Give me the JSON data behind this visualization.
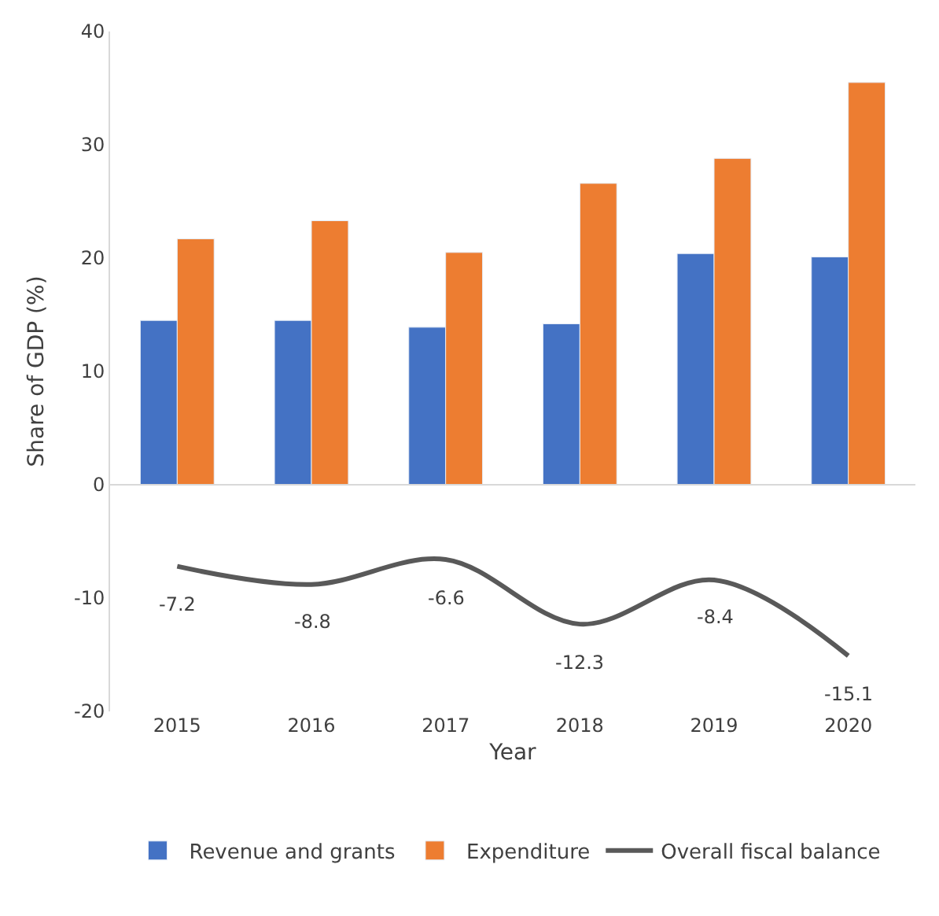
{
  "chart_data": {
    "type": "bar",
    "xlabel": "Year",
    "ylabel": "Share of GDP (%)",
    "categories": [
      "2015",
      "2016",
      "2017",
      "2018",
      "2019",
      "2020"
    ],
    "series": [
      {
        "name": "Revenue and grants",
        "color": "#4472c4",
        "values": [
          14.5,
          14.5,
          13.9,
          14.2,
          20.4,
          20.1
        ]
      },
      {
        "name": "Expenditure",
        "color": "#ed7d31",
        "values": [
          21.7,
          23.3,
          20.5,
          26.6,
          28.8,
          35.5
        ]
      },
      {
        "name": "Overall fiscal balance",
        "type": "line",
        "color": "#595959",
        "values": [
          -7.2,
          -8.8,
          -6.6,
          -12.3,
          -8.4,
          -15.1
        ],
        "value_labels": [
          "-7.2",
          "-8.8",
          "-6.6",
          "-12.3",
          "-8.4",
          "-15.1"
        ]
      }
    ],
    "ylim": [
      -20,
      40
    ],
    "yticks": [
      -20,
      -10,
      0,
      10,
      20,
      30,
      40
    ],
    "ref_lines": [
      {
        "axis": "y",
        "value": 0,
        "color": "#d9d9d9",
        "line_style": "solid"
      }
    ],
    "legend": "bottom",
    "marker": "none",
    "line_style": "solid"
  }
}
